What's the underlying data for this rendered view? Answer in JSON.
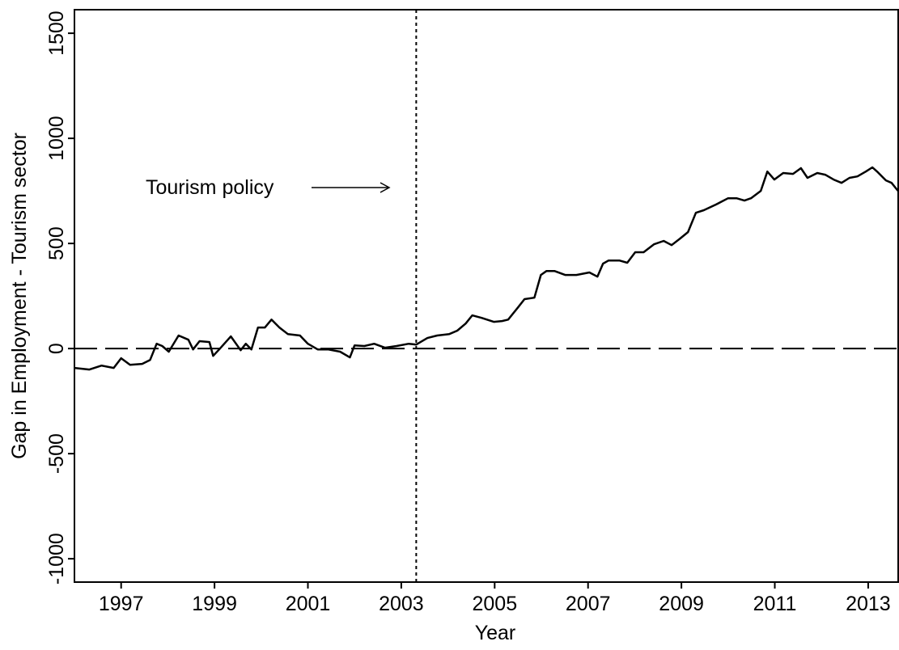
{
  "chart_data": {
    "type": "line",
    "xlabel": "Year",
    "ylabel": "Gap in Employment - Tourism sector",
    "annotation": "Tourism policy",
    "hline": 0,
    "vline": 2003.32,
    "xlim": [
      1996.0,
      2013.66
    ],
    "ylim": [
      -1111,
      1612
    ],
    "xticks": [
      1997,
      1999,
      2001,
      2003,
      2005,
      2007,
      2009,
      2011,
      2013
    ],
    "yticks": [
      -1000,
      -500,
      0,
      500,
      1000,
      1500
    ],
    "series": [
      {
        "color": "#000000",
        "x": [
          1996.0,
          1996.32,
          1996.58,
          1996.84,
          1997.0,
          1997.19,
          1997.45,
          1997.62,
          1997.76,
          1997.88,
          1998.02,
          1998.23,
          1998.44,
          1998.54,
          1998.68,
          1998.89,
          1998.97,
          1999.1,
          1999.35,
          1999.56,
          1999.67,
          1999.79,
          1999.93,
          2000.08,
          2000.22,
          2000.39,
          2000.57,
          2000.83,
          2001.0,
          2001.21,
          2001.43,
          2001.69,
          2001.9,
          2002.0,
          2002.21,
          2002.42,
          2002.65,
          2002.9,
          2003.16,
          2003.32,
          2003.56,
          2003.77,
          2004.03,
          2004.2,
          2004.38,
          2004.52,
          2004.72,
          2004.98,
          2005.16,
          2005.29,
          2005.5,
          2005.64,
          2005.85,
          2005.99,
          2006.11,
          2006.28,
          2006.51,
          2006.75,
          2007.03,
          2007.2,
          2007.32,
          2007.44,
          2007.67,
          2007.84,
          2008.01,
          2008.19,
          2008.41,
          2008.62,
          2008.79,
          2008.97,
          2009.14,
          2009.31,
          2009.48,
          2009.74,
          2010.0,
          2010.18,
          2010.35,
          2010.49,
          2010.7,
          2010.84,
          2010.99,
          2011.18,
          2011.39,
          2011.56,
          2011.7,
          2011.91,
          2012.08,
          2012.26,
          2012.43,
          2012.6,
          2012.77,
          2012.95,
          2013.09,
          2013.21,
          2013.38,
          2013.5,
          2013.64
        ],
        "values": [
          -92,
          -100,
          -81,
          -92,
          -46,
          -77,
          -73,
          -54,
          23,
          12,
          -15,
          62,
          42,
          -4,
          35,
          31,
          -35,
          -4,
          58,
          -8,
          23,
          -4,
          100,
          100,
          138,
          100,
          69,
          62,
          23,
          -4,
          -4,
          -15,
          -42,
          15,
          12,
          23,
          4,
          12,
          23,
          19,
          50,
          62,
          69,
          85,
          119,
          158,
          146,
          127,
          131,
          138,
          196,
          235,
          242,
          350,
          369,
          369,
          350,
          350,
          362,
          342,
          404,
          419,
          419,
          408,
          458,
          458,
          496,
          512,
          492,
          523,
          554,
          646,
          658,
          685,
          715,
          715,
          704,
          715,
          750,
          842,
          804,
          835,
          831,
          858,
          812,
          835,
          827,
          804,
          788,
          812,
          819,
          842,
          862,
          838,
          800,
          788,
          750
        ]
      }
    ]
  }
}
